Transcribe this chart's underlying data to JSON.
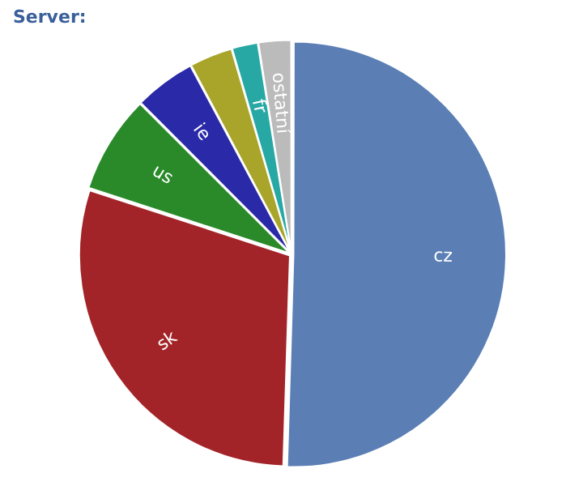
{
  "chart_data": {
    "type": "pie",
    "title": "Server:",
    "categories": [
      "cz",
      "sk",
      "us",
      "ie",
      null,
      "fr",
      "ostatní"
    ],
    "values": [
      50.5,
      29.5,
      7.5,
      4.7,
      3.3,
      2,
      2.5
    ],
    "colors": [
      "#5b7fb5",
      "#a32428",
      "#2a8a2a",
      "#2a2aa8",
      "#a8a52a",
      "#27a8a4",
      "#bbbbbb"
    ],
    "legend": false
  }
}
